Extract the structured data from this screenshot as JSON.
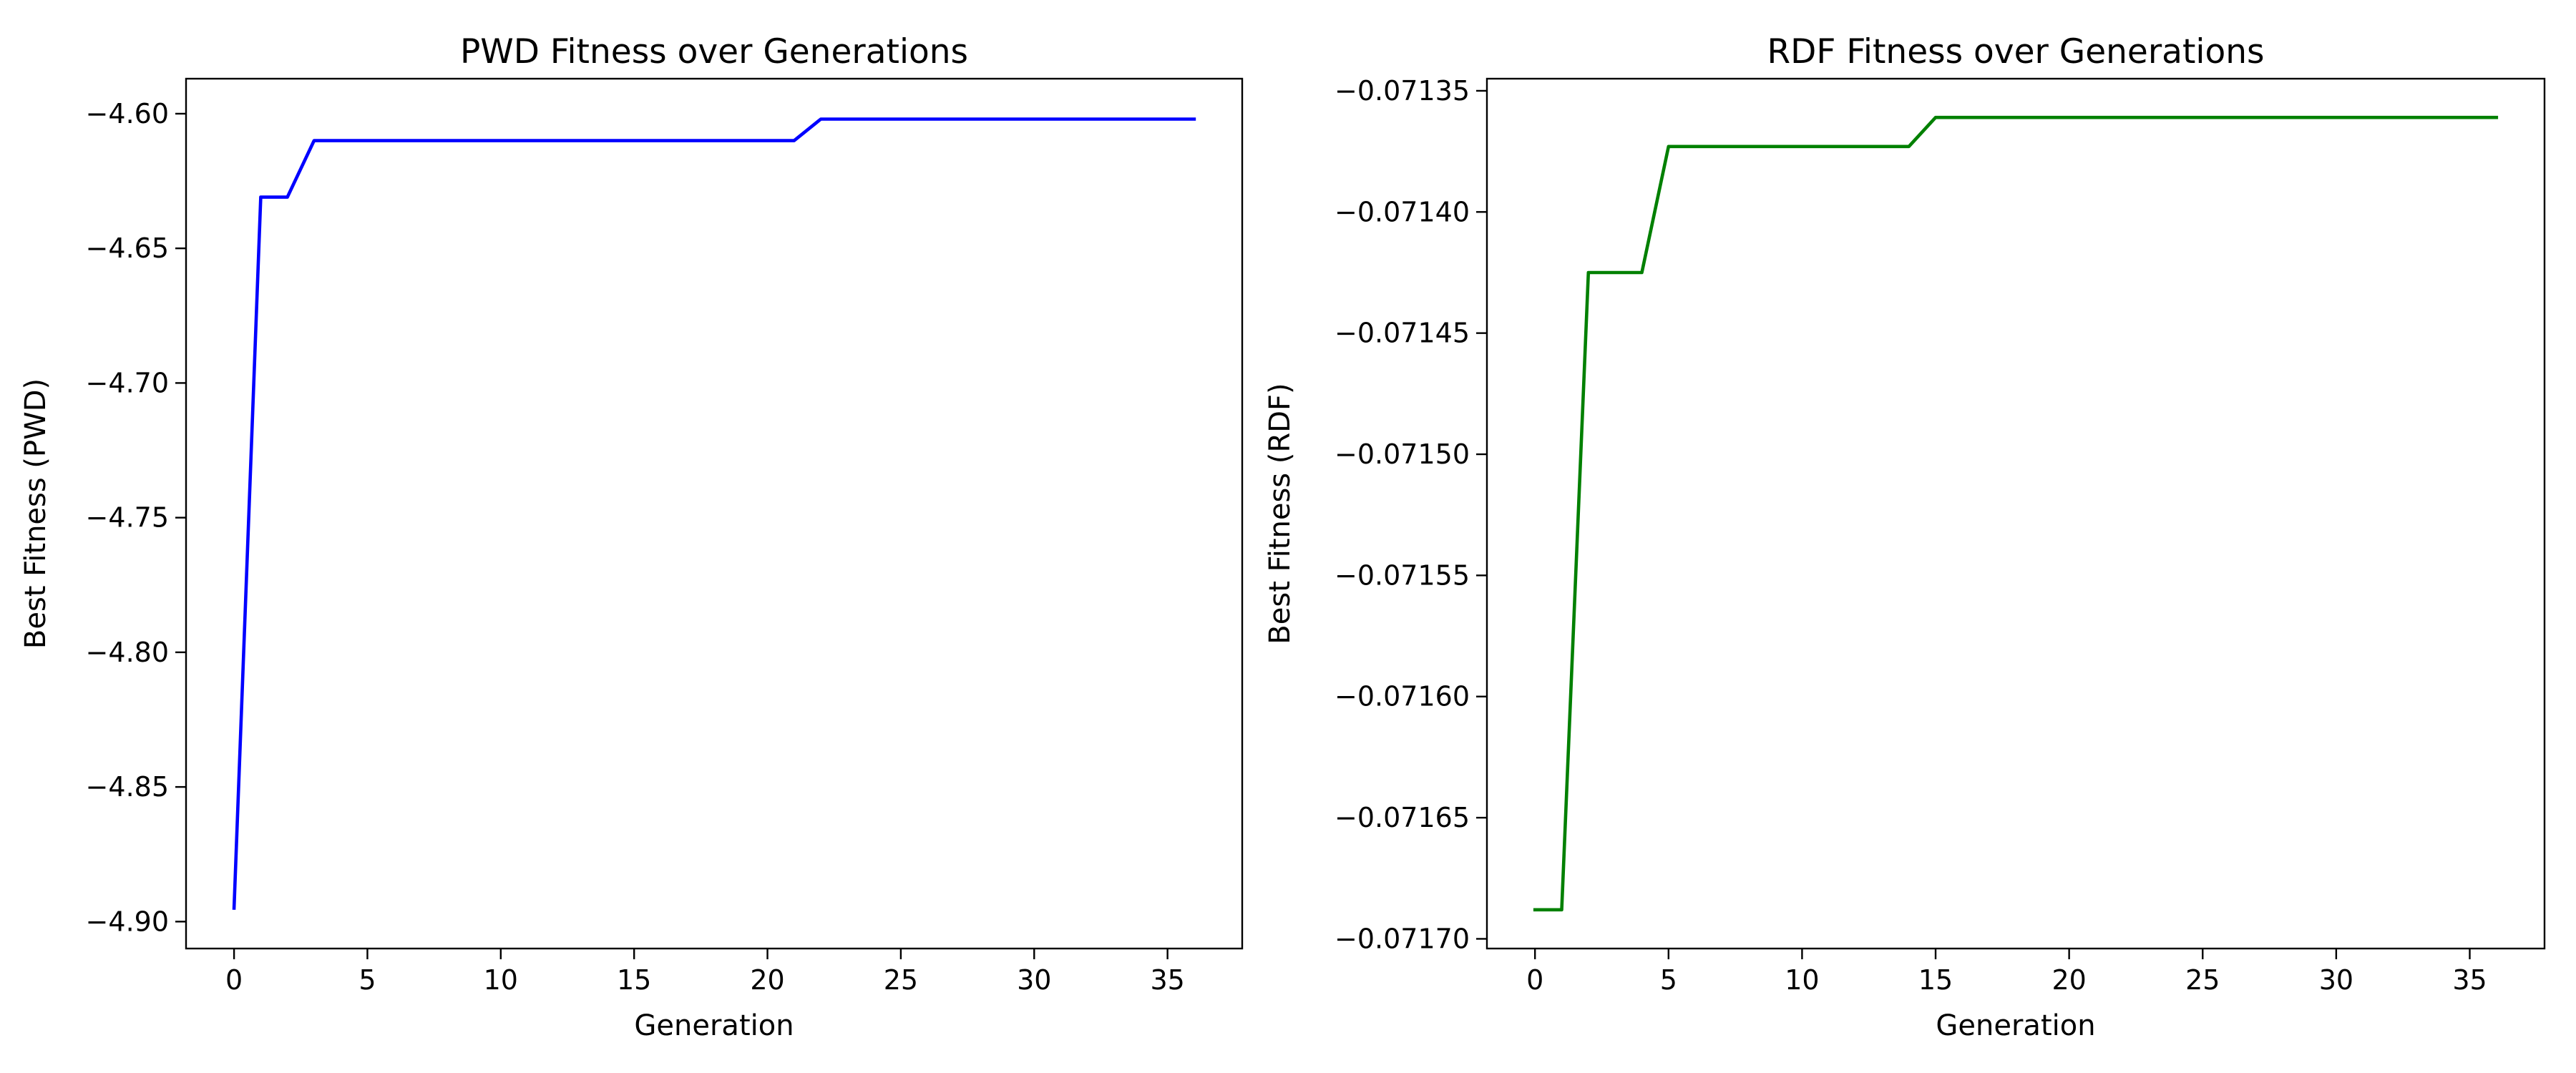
{
  "chart_data": [
    {
      "type": "line",
      "title": "PWD Fitness over Generations",
      "xlabel": "Generation",
      "ylabel": "Best Fitness (PWD)",
      "xlim": [
        -1.8,
        37.8
      ],
      "ylim": [
        -4.91,
        -4.587
      ],
      "xticks": [
        0,
        5,
        10,
        15,
        20,
        25,
        30,
        35
      ],
      "yticks": [
        -4.9,
        -4.85,
        -4.8,
        -4.75,
        -4.7,
        -4.65,
        -4.6
      ],
      "xtick_labels": [
        "0",
        "5",
        "10",
        "15",
        "20",
        "25",
        "30",
        "35"
      ],
      "ytick_labels": [
        "−4.90",
        "−4.85",
        "−4.80",
        "−4.75",
        "−4.70",
        "−4.65",
        "−4.60"
      ],
      "grid": false,
      "series": [
        {
          "color": "#0000ff",
          "x": [
            0,
            1,
            2,
            3,
            4,
            5,
            6,
            7,
            8,
            9,
            10,
            11,
            12,
            13,
            14,
            15,
            16,
            17,
            18,
            19,
            20,
            21,
            22,
            23,
            24,
            25,
            26,
            27,
            28,
            29,
            30,
            31,
            32,
            33,
            34,
            35,
            36
          ],
          "values": [
            -4.895,
            -4.631,
            -4.631,
            -4.61,
            -4.61,
            -4.61,
            -4.61,
            -4.61,
            -4.61,
            -4.61,
            -4.61,
            -4.61,
            -4.61,
            -4.61,
            -4.61,
            -4.61,
            -4.61,
            -4.61,
            -4.61,
            -4.61,
            -4.61,
            -4.61,
            -4.602,
            -4.602,
            -4.602,
            -4.602,
            -4.602,
            -4.602,
            -4.602,
            -4.602,
            -4.602,
            -4.602,
            -4.602,
            -4.602,
            -4.602,
            -4.602,
            -4.602
          ]
        }
      ]
    },
    {
      "type": "line",
      "title": "RDF Fitness over Generations",
      "xlabel": "Generation",
      "ylabel": "Best Fitness (RDF)",
      "xlim": [
        -1.8,
        37.8
      ],
      "ylim": [
        -0.071704,
        -0.071345
      ],
      "xticks": [
        0,
        5,
        10,
        15,
        20,
        25,
        30,
        35
      ],
      "yticks": [
        -0.0717,
        -0.07165,
        -0.0716,
        -0.07155,
        -0.0715,
        -0.07145,
        -0.0714,
        -0.07135
      ],
      "xtick_labels": [
        "0",
        "5",
        "10",
        "15",
        "20",
        "25",
        "30",
        "35"
      ],
      "ytick_labels": [
        "−0.07170",
        "−0.07165",
        "−0.07160",
        "−0.07155",
        "−0.07150",
        "−0.07145",
        "−0.07140",
        "−0.07135"
      ],
      "grid": false,
      "series": [
        {
          "color": "#008000",
          "x": [
            0,
            1,
            2,
            3,
            4,
            5,
            6,
            7,
            8,
            9,
            10,
            11,
            12,
            13,
            14,
            15,
            16,
            17,
            18,
            19,
            20,
            21,
            22,
            23,
            24,
            25,
            26,
            27,
            28,
            29,
            30,
            31,
            32,
            33,
            34,
            35,
            36
          ],
          "values": [
            -0.071688,
            -0.071688,
            -0.071425,
            -0.071425,
            -0.071425,
            -0.071373,
            -0.071373,
            -0.071373,
            -0.071373,
            -0.071373,
            -0.071373,
            -0.071373,
            -0.071373,
            -0.071373,
            -0.071373,
            -0.071361,
            -0.071361,
            -0.071361,
            -0.071361,
            -0.071361,
            -0.071361,
            -0.071361,
            -0.071361,
            -0.071361,
            -0.071361,
            -0.071361,
            -0.071361,
            -0.071361,
            -0.071361,
            -0.071361,
            -0.071361,
            -0.071361,
            -0.071361,
            -0.071361,
            -0.071361,
            -0.071361,
            -0.071361
          ]
        }
      ]
    }
  ]
}
